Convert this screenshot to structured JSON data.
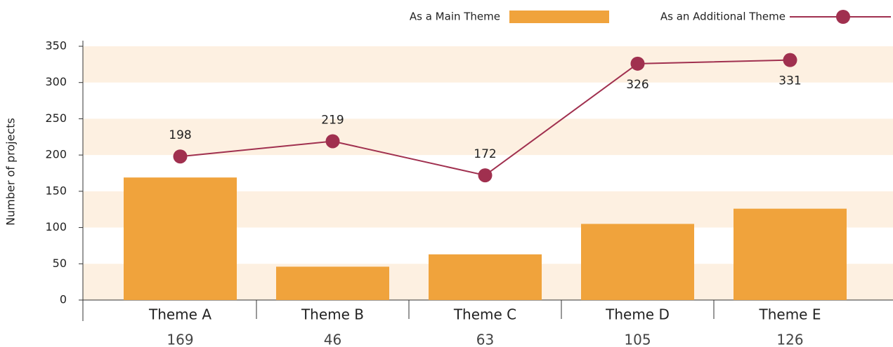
{
  "chart_data": {
    "type": "bar",
    "y_label": "Number of projects",
    "categories": [
      "Theme A",
      "Theme B",
      "Theme C",
      "Theme D",
      "Theme E"
    ],
    "series": [
      {
        "name": "As a Main Theme",
        "type": "bar",
        "color": "#f0a33c",
        "values": [
          169,
          46,
          63,
          105,
          126
        ]
      },
      {
        "name": "As an Additional Theme",
        "type": "line",
        "color": "#a0304f",
        "values": [
          198,
          219,
          172,
          326,
          331
        ]
      }
    ],
    "ylim": [
      0,
      350
    ],
    "yticks": [
      0,
      50,
      100,
      150,
      200,
      250,
      300,
      350
    ],
    "band_color": "#fdf0e1",
    "legend": "top-right"
  }
}
